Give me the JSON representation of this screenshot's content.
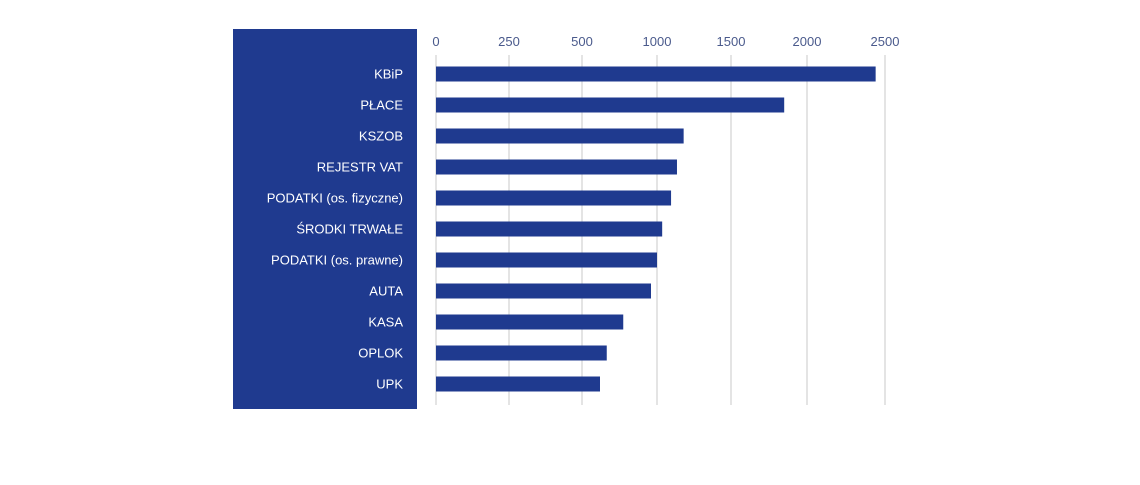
{
  "chart_data": {
    "type": "bar",
    "orientation": "horizontal",
    "categories": [
      "KBiP",
      "PŁACE",
      "KSZOB",
      "REJESTR VAT",
      "PODATKI (os. fizyczne)",
      "ŚRODKI TRWAŁE",
      "PODATKI (os. prawne)",
      "AUTA",
      "KASA",
      "OPLOK",
      "UPK"
    ],
    "values": [
      2440,
      1850,
      1180,
      1135,
      1095,
      1035,
      1000,
      960,
      775,
      665,
      620
    ],
    "x_ticks": [
      0,
      250,
      500,
      1000,
      1500,
      2000,
      2500
    ],
    "xlim": [
      0,
      2500
    ],
    "x_axis_scale": "non-uniform spacing between ticks (0, 250, 500, then steps of 500)",
    "grid": true,
    "legend": "none",
    "colors": {
      "bar": "#1f3a8f",
      "label_panel": "#1f3a8f",
      "label_text": "#ffffff",
      "tick_text": "#4a5a8c",
      "grid": "#c8c8c8"
    }
  }
}
